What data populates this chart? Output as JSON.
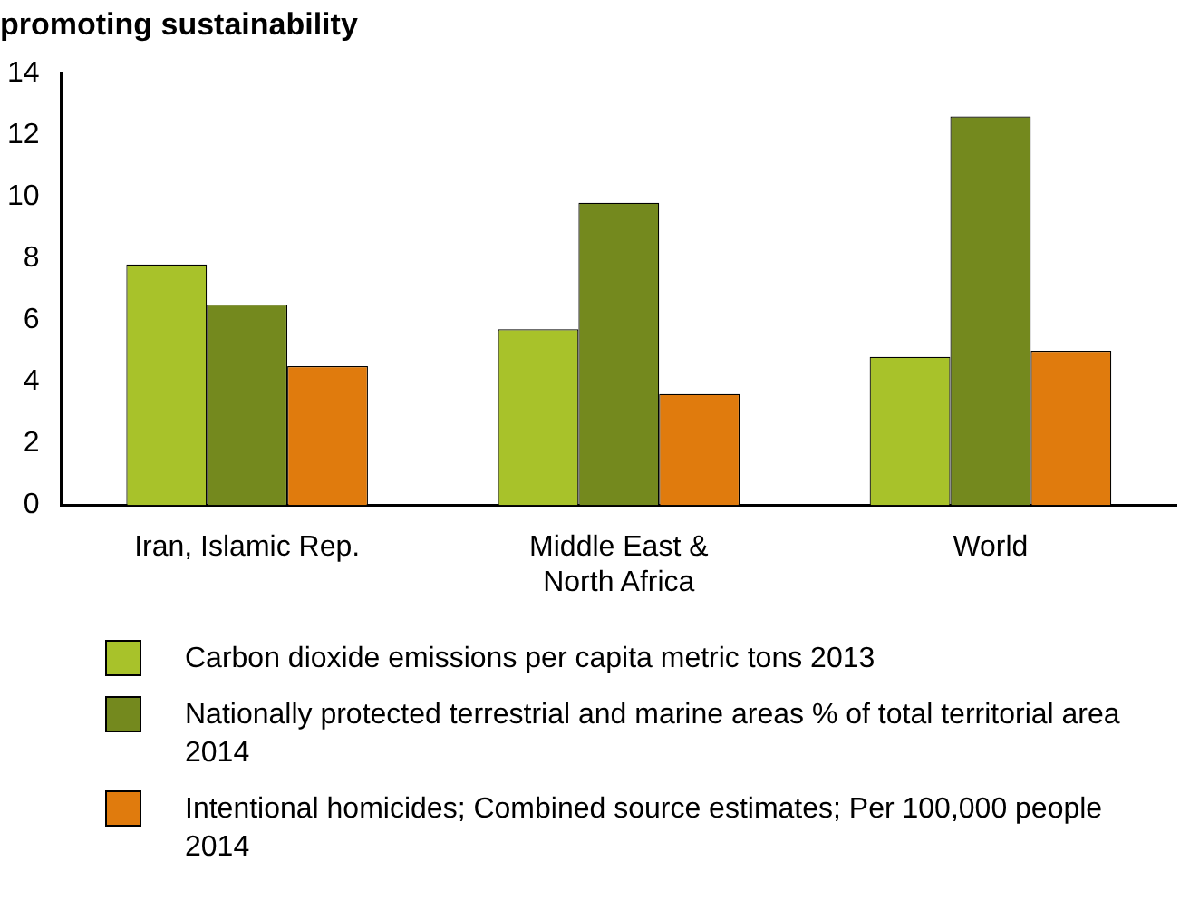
{
  "chart_data": {
    "type": "bar",
    "title": "promoting sustainability",
    "categories": [
      "Iran, Islamic Rep.",
      "Middle East & North Africa",
      "World"
    ],
    "series": [
      {
        "name": "Carbon dioxide emissions per capita metric tons 2013",
        "color": "#a8c22a",
        "values": [
          7.8,
          5.7,
          4.8
        ]
      },
      {
        "name": "Nationally protected terrestrial and marine areas % of total territorial area 2014",
        "color": "#74891e",
        "values": [
          6.5,
          9.8,
          12.6
        ]
      },
      {
        "name": "Intentional homicides; Combined source estimates; Per 100,000 people 2014",
        "color": "#e07b0d",
        "values": [
          4.5,
          3.6,
          5.0
        ]
      }
    ],
    "ylim": [
      0,
      14
    ],
    "yticks": [
      0,
      2,
      4,
      6,
      8,
      10,
      12,
      14
    ],
    "grid": false,
    "legend": "bottom"
  }
}
